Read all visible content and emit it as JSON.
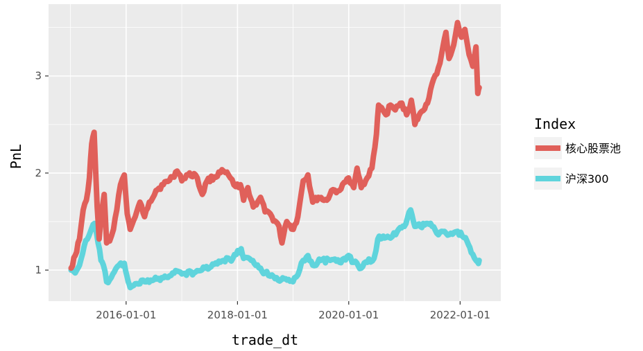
{
  "chart_data": {
    "type": "line",
    "xlabel": "trade_dt",
    "ylabel": "PnL",
    "x_ticks": [
      "2016-01-01",
      "2018-01-01",
      "2020-01-01",
      "2022-01-01"
    ],
    "y_ticks": [
      1,
      2,
      3
    ],
    "xlim": [
      "2014-08-10",
      "2022-09-25"
    ],
    "ylim": [
      0.68,
      3.74
    ],
    "grid": true,
    "legend": {
      "title": "Index",
      "placement": "right"
    },
    "colors": {
      "panel_bg": "#ebebeb",
      "grid": "#ffffff",
      "core": "#e0605a",
      "hs300": "#5fd4dc"
    },
    "series": [
      {
        "name": "核心股票池",
        "color": "#e0605a",
        "points": [
          [
            "2015-01-05",
            1.02
          ],
          [
            "2015-02-01",
            1.15
          ],
          [
            "2015-03-01",
            1.32
          ],
          [
            "2015-03-25",
            1.62
          ],
          [
            "2015-04-15",
            1.72
          ],
          [
            "2015-05-05",
            1.95
          ],
          [
            "2015-05-20",
            2.3
          ],
          [
            "2015-06-05",
            2.42
          ],
          [
            "2015-06-25",
            1.65
          ],
          [
            "2015-07-08",
            1.32
          ],
          [
            "2015-07-22",
            1.6
          ],
          [
            "2015-08-10",
            1.78
          ],
          [
            "2015-08-26",
            1.28
          ],
          [
            "2015-09-15",
            1.3
          ],
          [
            "2015-10-10",
            1.42
          ],
          [
            "2015-11-01",
            1.62
          ],
          [
            "2015-11-25",
            1.88
          ],
          [
            "2015-12-20",
            1.98
          ],
          [
            "2016-01-08",
            1.58
          ],
          [
            "2016-01-28",
            1.42
          ],
          [
            "2016-03-01",
            1.55
          ],
          [
            "2016-04-01",
            1.7
          ],
          [
            "2016-05-01",
            1.55
          ],
          [
            "2016-06-01",
            1.7
          ],
          [
            "2016-07-15",
            1.82
          ],
          [
            "2016-09-01",
            1.88
          ],
          [
            "2016-11-01",
            1.96
          ],
          [
            "2016-12-01",
            2.02
          ],
          [
            "2017-01-01",
            1.92
          ],
          [
            "2017-02-01",
            1.98
          ],
          [
            "2017-04-01",
            1.98
          ],
          [
            "2017-05-15",
            1.78
          ],
          [
            "2017-06-15",
            1.92
          ],
          [
            "2017-08-01",
            1.96
          ],
          [
            "2017-10-01",
            2.02
          ],
          [
            "2017-11-15",
            1.95
          ],
          [
            "2017-12-20",
            1.86
          ],
          [
            "2018-01-20",
            1.88
          ],
          [
            "2018-02-10",
            1.72
          ],
          [
            "2018-03-10",
            1.85
          ],
          [
            "2018-04-15",
            1.65
          ],
          [
            "2018-06-01",
            1.75
          ],
          [
            "2018-07-01",
            1.6
          ],
          [
            "2018-08-15",
            1.55
          ],
          [
            "2018-10-01",
            1.45
          ],
          [
            "2018-10-20",
            1.28
          ],
          [
            "2018-11-20",
            1.5
          ],
          [
            "2019-01-02",
            1.42
          ],
          [
            "2019-02-01",
            1.55
          ],
          [
            "2019-03-08",
            1.92
          ],
          [
            "2019-04-08",
            1.98
          ],
          [
            "2019-05-10",
            1.7
          ],
          [
            "2019-06-15",
            1.75
          ],
          [
            "2019-08-10",
            1.72
          ],
          [
            "2019-09-10",
            1.82
          ],
          [
            "2019-11-01",
            1.82
          ],
          [
            "2019-12-31",
            1.95
          ],
          [
            "2020-02-03",
            1.85
          ],
          [
            "2020-02-25",
            2.05
          ],
          [
            "2020-03-23",
            1.85
          ],
          [
            "2020-05-01",
            1.95
          ],
          [
            "2020-06-01",
            2.05
          ],
          [
            "2020-07-01",
            2.4
          ],
          [
            "2020-07-15",
            2.7
          ],
          [
            "2020-09-01",
            2.6
          ],
          [
            "2020-10-01",
            2.7
          ],
          [
            "2020-11-01",
            2.65
          ],
          [
            "2020-12-15",
            2.72
          ],
          [
            "2021-01-15",
            2.6
          ],
          [
            "2021-02-15",
            2.75
          ],
          [
            "2021-03-10",
            2.5
          ],
          [
            "2021-04-15",
            2.62
          ],
          [
            "2021-06-01",
            2.72
          ],
          [
            "2021-07-01",
            2.92
          ],
          [
            "2021-08-01",
            3.02
          ],
          [
            "2021-09-01",
            3.22
          ],
          [
            "2021-09-30",
            3.45
          ],
          [
            "2021-10-20",
            3.18
          ],
          [
            "2021-11-20",
            3.32
          ],
          [
            "2021-12-15",
            3.55
          ],
          [
            "2022-01-10",
            3.4
          ],
          [
            "2022-02-01",
            3.48
          ],
          [
            "2022-03-01",
            3.22
          ],
          [
            "2022-03-25",
            3.1
          ],
          [
            "2022-04-15",
            3.3
          ],
          [
            "2022-04-27",
            2.82
          ],
          [
            "2022-05-06",
            2.88
          ]
        ]
      },
      {
        "name": "沪深300",
        "color": "#5fd4dc",
        "points": [
          [
            "2015-01-05",
            1.0
          ],
          [
            "2015-02-01",
            0.97
          ],
          [
            "2015-03-01",
            1.05
          ],
          [
            "2015-04-01",
            1.25
          ],
          [
            "2015-05-01",
            1.35
          ],
          [
            "2015-06-08",
            1.48
          ],
          [
            "2015-07-01",
            1.28
          ],
          [
            "2015-07-20",
            1.1
          ],
          [
            "2015-08-05",
            1.05
          ],
          [
            "2015-08-26",
            0.88
          ],
          [
            "2015-09-15",
            0.9
          ],
          [
            "2015-10-15",
            0.98
          ],
          [
            "2015-11-15",
            1.05
          ],
          [
            "2015-12-20",
            1.07
          ],
          [
            "2016-01-15",
            0.88
          ],
          [
            "2016-01-28",
            0.82
          ],
          [
            "2016-03-01",
            0.86
          ],
          [
            "2016-05-01",
            0.88
          ],
          [
            "2016-07-01",
            0.9
          ],
          [
            "2016-09-01",
            0.92
          ],
          [
            "2016-11-01",
            0.97
          ],
          [
            "2016-12-01",
            0.99
          ],
          [
            "2017-01-01",
            0.96
          ],
          [
            "2017-04-01",
            0.98
          ],
          [
            "2017-06-01",
            1.02
          ],
          [
            "2017-08-01",
            1.06
          ],
          [
            "2017-10-01",
            1.1
          ],
          [
            "2017-12-01",
            1.12
          ],
          [
            "2018-01-25",
            1.22
          ],
          [
            "2018-02-10",
            1.12
          ],
          [
            "2018-04-01",
            1.1
          ],
          [
            "2018-06-01",
            1.02
          ],
          [
            "2018-07-01",
            0.97
          ],
          [
            "2018-08-15",
            0.95
          ],
          [
            "2018-10-15",
            0.9
          ],
          [
            "2018-12-31",
            0.88
          ],
          [
            "2019-02-01",
            0.95
          ],
          [
            "2019-03-08",
            1.1
          ],
          [
            "2019-04-08",
            1.15
          ],
          [
            "2019-05-10",
            1.05
          ],
          [
            "2019-07-01",
            1.1
          ],
          [
            "2019-09-01",
            1.1
          ],
          [
            "2019-11-01",
            1.08
          ],
          [
            "2019-12-31",
            1.15
          ],
          [
            "2020-02-03",
            1.08
          ],
          [
            "2020-03-23",
            1.02
          ],
          [
            "2020-05-01",
            1.08
          ],
          [
            "2020-06-15",
            1.12
          ],
          [
            "2020-07-10",
            1.32
          ],
          [
            "2020-08-15",
            1.35
          ],
          [
            "2020-10-01",
            1.33
          ],
          [
            "2020-11-15",
            1.4
          ],
          [
            "2020-12-31",
            1.45
          ],
          [
            "2021-02-10",
            1.62
          ],
          [
            "2021-03-10",
            1.45
          ],
          [
            "2021-04-15",
            1.45
          ],
          [
            "2021-06-01",
            1.48
          ],
          [
            "2021-07-01",
            1.45
          ],
          [
            "2021-08-01",
            1.38
          ],
          [
            "2021-09-01",
            1.4
          ],
          [
            "2021-10-01",
            1.38
          ],
          [
            "2021-11-01",
            1.38
          ],
          [
            "2021-12-15",
            1.4
          ],
          [
            "2022-01-15",
            1.35
          ],
          [
            "2022-02-15",
            1.3
          ],
          [
            "2022-03-15",
            1.18
          ],
          [
            "2022-04-27",
            1.08
          ],
          [
            "2022-05-06",
            1.1
          ]
        ]
      }
    ]
  }
}
